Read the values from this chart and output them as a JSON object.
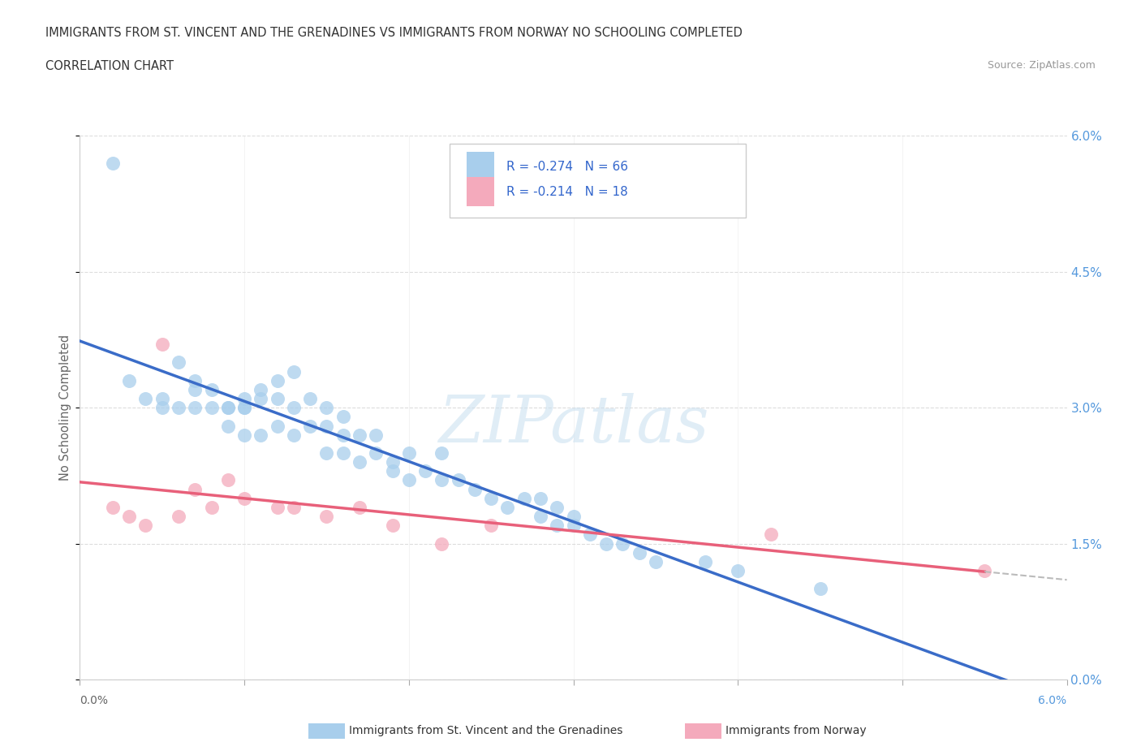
{
  "title_line1": "IMMIGRANTS FROM ST. VINCENT AND THE GRENADINES VS IMMIGRANTS FROM NORWAY NO SCHOOLING COMPLETED",
  "title_line2": "CORRELATION CHART",
  "source": "Source: ZipAtlas.com",
  "ylabel": "No Schooling Completed",
  "legend_blue_label": "Immigrants from St. Vincent and the Grenadines",
  "legend_pink_label": "Immigrants from Norway",
  "legend_r_blue": "R = -0.274",
  "legend_n_blue": "N = 66",
  "legend_r_pink": "R = -0.214",
  "legend_n_pink": "N = 18",
  "blue_color": "#A8CEEC",
  "pink_color": "#F4AABC",
  "trendline_blue_color": "#3A6CC8",
  "trendline_pink_color": "#E8607A",
  "trendline_dashed_color": "#BBBBBB",
  "watermark_color": "#C8DFF0",
  "blue_x": [
    0.002,
    0.003,
    0.004,
    0.005,
    0.005,
    0.006,
    0.006,
    0.007,
    0.007,
    0.007,
    0.008,
    0.008,
    0.009,
    0.009,
    0.009,
    0.01,
    0.01,
    0.01,
    0.01,
    0.011,
    0.011,
    0.011,
    0.012,
    0.012,
    0.012,
    0.013,
    0.013,
    0.013,
    0.014,
    0.014,
    0.015,
    0.015,
    0.015,
    0.016,
    0.016,
    0.016,
    0.017,
    0.017,
    0.018,
    0.018,
    0.019,
    0.019,
    0.02,
    0.02,
    0.021,
    0.022,
    0.022,
    0.023,
    0.024,
    0.025,
    0.026,
    0.027,
    0.028,
    0.028,
    0.029,
    0.029,
    0.03,
    0.03,
    0.031,
    0.032,
    0.033,
    0.034,
    0.035,
    0.038,
    0.04,
    0.045
  ],
  "blue_y": [
    0.057,
    0.033,
    0.031,
    0.03,
    0.031,
    0.035,
    0.03,
    0.033,
    0.032,
    0.03,
    0.032,
    0.03,
    0.03,
    0.03,
    0.028,
    0.03,
    0.031,
    0.03,
    0.027,
    0.032,
    0.031,
    0.027,
    0.033,
    0.031,
    0.028,
    0.034,
    0.03,
    0.027,
    0.031,
    0.028,
    0.03,
    0.028,
    0.025,
    0.029,
    0.027,
    0.025,
    0.027,
    0.024,
    0.027,
    0.025,
    0.024,
    0.023,
    0.025,
    0.022,
    0.023,
    0.025,
    0.022,
    0.022,
    0.021,
    0.02,
    0.019,
    0.02,
    0.02,
    0.018,
    0.019,
    0.017,
    0.018,
    0.017,
    0.016,
    0.015,
    0.015,
    0.014,
    0.013,
    0.013,
    0.012,
    0.01
  ],
  "pink_x": [
    0.002,
    0.003,
    0.004,
    0.005,
    0.006,
    0.007,
    0.008,
    0.009,
    0.01,
    0.012,
    0.013,
    0.015,
    0.017,
    0.019,
    0.022,
    0.025,
    0.042,
    0.055
  ],
  "pink_y": [
    0.019,
    0.018,
    0.017,
    0.037,
    0.018,
    0.021,
    0.019,
    0.022,
    0.02,
    0.019,
    0.019,
    0.018,
    0.019,
    0.017,
    0.015,
    0.017,
    0.016,
    0.012
  ],
  "xmin": 0.0,
  "xmax": 0.06,
  "ymin": 0.0,
  "ymax": 0.06,
  "ytick_vals": [
    0.0,
    0.015,
    0.03,
    0.045,
    0.06
  ],
  "ytick_labels": [
    "0.0%",
    "1.5%",
    "3.0%",
    "4.5%",
    "6.0%"
  ],
  "grid_color": "#DDDDDD",
  "background_color": "#FFFFFF"
}
